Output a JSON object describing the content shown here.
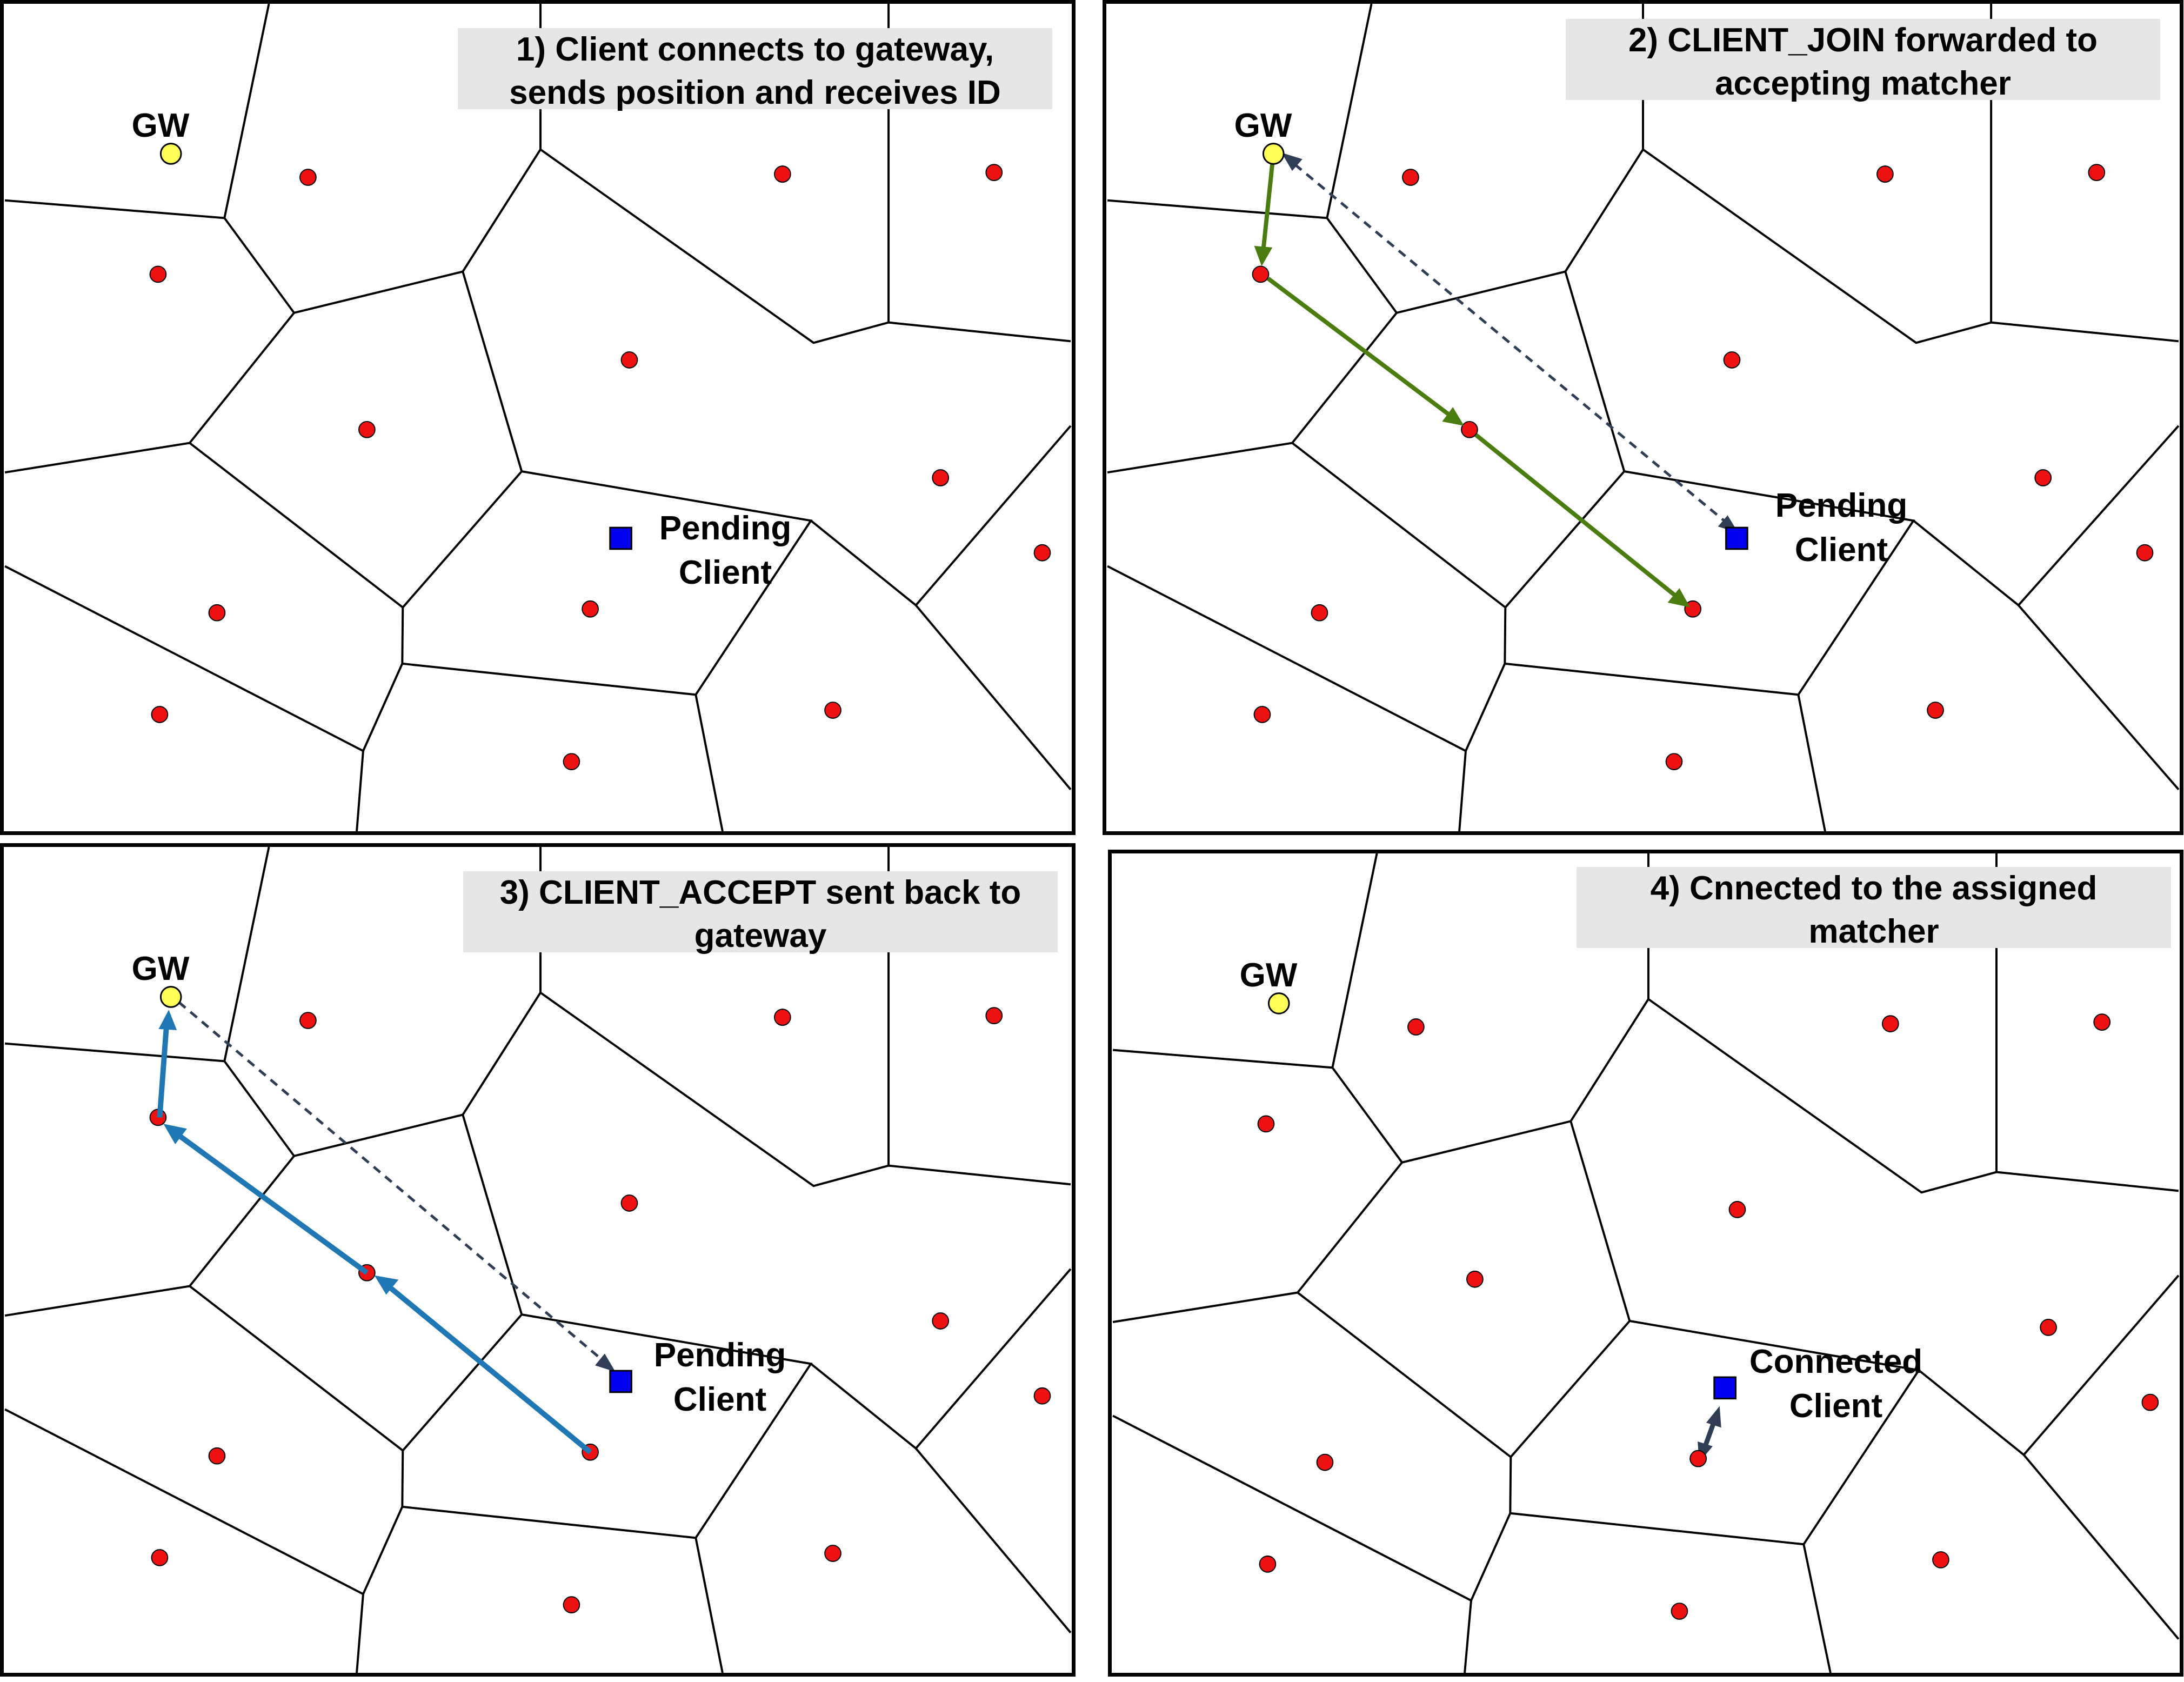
{
  "colors": {
    "site": "#ee1111",
    "gateway": "#ffff55",
    "client": "#0000ee",
    "join_arrow": "#4a7c10",
    "accept_arrow": "#1f78b4",
    "dashed_arrow": "#2f3e55"
  },
  "panels": [
    {
      "caption": "1) Client connects to gateway,\nsends position and receives ID",
      "gateway_label": "GW",
      "client_label": "Pending\nClient"
    },
    {
      "caption": "2) CLIENT_JOIN forwarded to\naccepting matcher",
      "gateway_label": "GW",
      "client_label": "Pending\nClient"
    },
    {
      "caption": "3) CLIENT_ACCEPT sent back to\ngateway",
      "gateway_label": "GW",
      "client_label": "Pending\nClient"
    },
    {
      "caption": "4) Cnnected to the assigned\nmatcher",
      "gateway_label": "GW",
      "client_label": "Connected\nClient"
    }
  ]
}
